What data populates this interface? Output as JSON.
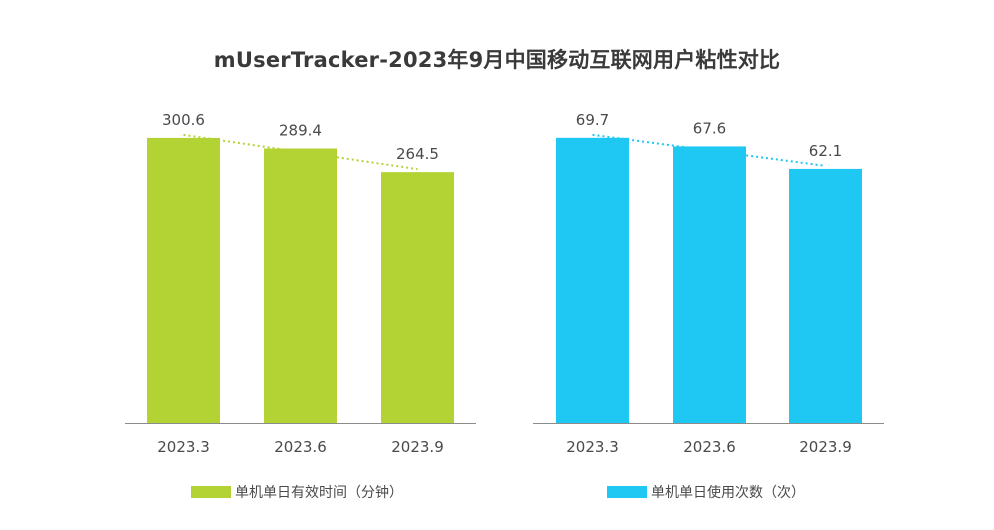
{
  "title": "mUserTracker-2023年9月中国移动互联网用户粘性对比",
  "chart_data": [
    {
      "type": "bar",
      "categories": [
        "2023.3",
        "2023.6",
        "2023.9"
      ],
      "series": [
        {
          "name": "单机单日有效时间（分钟）",
          "values": [
            300.6,
            289.4,
            264.5
          ]
        }
      ],
      "ylim": [
        0,
        330
      ],
      "color": "#b3d335",
      "trendline": true,
      "legend": "bottom"
    },
    {
      "type": "bar",
      "categories": [
        "2023.3",
        "2023.6",
        "2023.9"
      ],
      "series": [
        {
          "name": "单机单日使用次数（次）",
          "values": [
            69.7,
            67.6,
            62.1
          ]
        }
      ],
      "ylim": [
        0,
        76.5
      ],
      "color": "#1ec8f2",
      "trendline": true,
      "legend": "bottom"
    }
  ]
}
